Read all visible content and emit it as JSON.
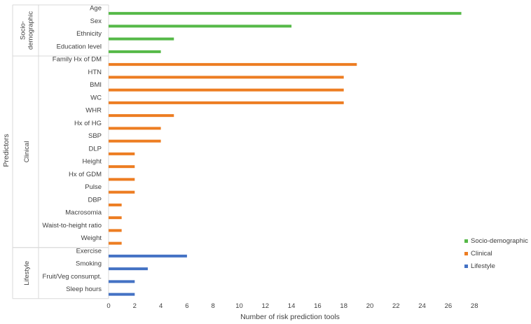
{
  "chart_data": {
    "type": "bar",
    "orientation": "horizontal",
    "xlabel": "Number of risk prediction tools",
    "ylabel": "Predictors",
    "xlim": [
      0,
      28
    ],
    "xticks": [
      0,
      2,
      4,
      6,
      8,
      10,
      12,
      14,
      16,
      18,
      20,
      22,
      24,
      26,
      28
    ],
    "grid": false,
    "legend_position": "right",
    "groups": [
      {
        "name": "Socio-demographic",
        "color": "#56b948",
        "categories": [
          "Age",
          "Sex",
          "Ethnicity",
          "Education level"
        ],
        "values": [
          27,
          14,
          5,
          4
        ]
      },
      {
        "name": "Clinical",
        "color": "#ed7d22",
        "categories": [
          "Family Hx of DM",
          "HTN",
          "BMI",
          "WC",
          "WHR",
          "Hx of HG",
          "SBP",
          "DLP",
          "Height",
          "Hx of GDM",
          "Pulse",
          "DBP",
          "Macrosomia",
          "Waist-to-height ratio",
          "Weight"
        ],
        "values": [
          19,
          18,
          18,
          18,
          5,
          4,
          4,
          2,
          2,
          2,
          2,
          1,
          1,
          1,
          1
        ]
      },
      {
        "name": "Lifestyle",
        "color": "#4472c4",
        "categories": [
          "Exercise",
          "Smoking",
          "Fruit/Veg consumpt.",
          "Sleep hours"
        ],
        "values": [
          6,
          3,
          2,
          2
        ]
      }
    ],
    "group_labels": [
      [
        "Socio-",
        "demographic"
      ],
      [
        "Clinical"
      ],
      [
        "Lifestyle"
      ]
    ],
    "legend": [
      "Socio-demographic",
      "Clinical",
      "Lifestyle"
    ]
  }
}
